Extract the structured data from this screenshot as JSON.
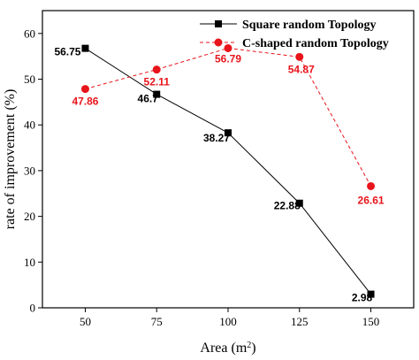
{
  "chart_data": {
    "type": "line",
    "xlabel": "Area (m",
    "xlabel_sup": "2",
    "xlabel_tail": ")",
    "ylabel": "rate of improvement (%)",
    "x_ticks": [
      50,
      75,
      100,
      125,
      150
    ],
    "y_ticks": [
      0,
      10,
      20,
      30,
      40,
      50,
      60
    ],
    "xlim": [
      35,
      165
    ],
    "ylim": [
      0,
      65
    ],
    "legend_position": "top-right",
    "series": [
      {
        "name": "Square random Topology",
        "color": "#000000",
        "marker": "square",
        "line": "solid",
        "x": [
          50,
          75,
          100,
          125,
          150
        ],
        "y": [
          56.75,
          46.7,
          38.27,
          22.88,
          2.98
        ],
        "labels": [
          "56.75",
          "46.7",
          "38.27",
          "22.88",
          "2.98"
        ]
      },
      {
        "name": "C-shaped random Topology",
        "color": "#e8141b",
        "marker": "circle",
        "line": "dashed",
        "x": [
          50,
          75,
          100,
          125,
          150
        ],
        "y": [
          47.86,
          52.11,
          56.79,
          54.87,
          26.61
        ],
        "labels": [
          "47.86",
          "52.11",
          "56.79",
          "54.87",
          "26.61"
        ]
      }
    ]
  }
}
